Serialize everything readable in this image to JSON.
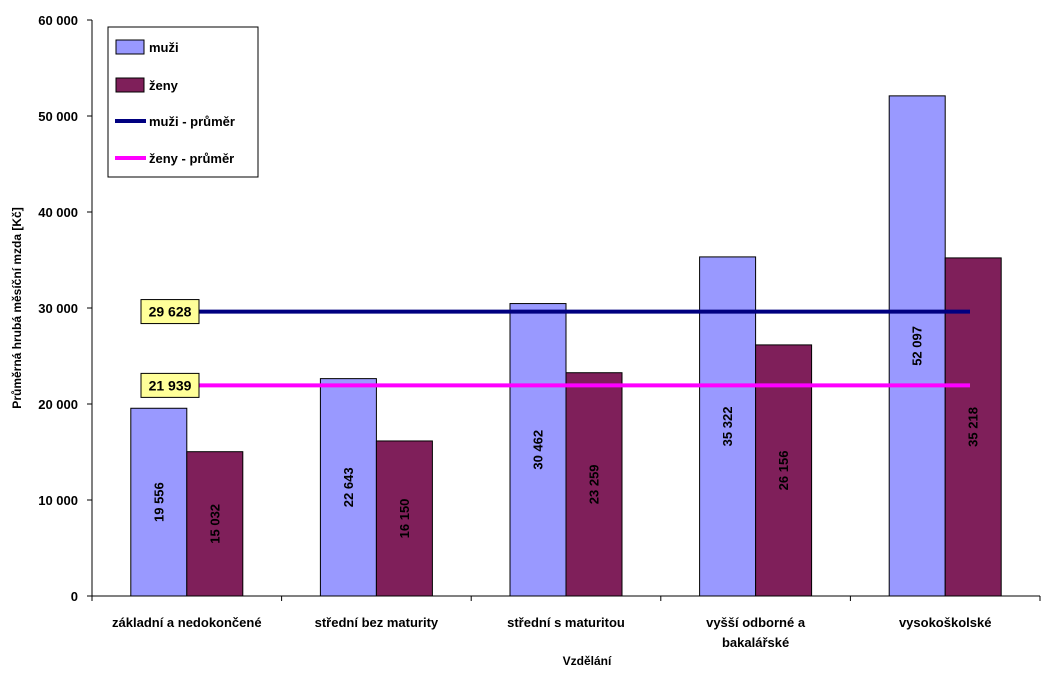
{
  "colors": {
    "men_bar": "#9999ff",
    "women_bar": "#7f1f5a",
    "men_avg": "#000080",
    "women_avg": "#ff00ff",
    "avg_label_bg": "#ffff99"
  },
  "chart_data": {
    "type": "bar",
    "title": "",
    "xlabel": "Vzdělání",
    "ylabel": "Průměrná hrubá měsíční mzda [Kč]",
    "ylim": [
      0,
      60000
    ],
    "yticks": [
      "0",
      "10 000",
      "20 000",
      "30 000",
      "40 000",
      "50 000",
      "60 000"
    ],
    "grid": false,
    "legend_position": "top-left",
    "categories": [
      [
        "základní a nedokončené"
      ],
      [
        "střední bez maturity"
      ],
      [
        "střední s maturitou"
      ],
      [
        "vyšší odborné a",
        "bakalářské"
      ],
      [
        "vysokoškolské"
      ]
    ],
    "series": [
      {
        "name": "muži",
        "values": [
          19556,
          22643,
          30462,
          35322,
          52097
        ],
        "labels": [
          "19 556",
          "22 643",
          "30 462",
          "35 322",
          "52 097"
        ]
      },
      {
        "name": "ženy",
        "values": [
          15032,
          16150,
          23259,
          26156,
          35218
        ],
        "labels": [
          "15 032",
          "16 150",
          "23 259",
          "26 156",
          "35 218"
        ]
      }
    ],
    "averages": [
      {
        "name": "muži - průměr",
        "value": 29628,
        "label": "29 628"
      },
      {
        "name": "ženy - průměr",
        "value": 21939,
        "label": "21 939"
      }
    ]
  }
}
